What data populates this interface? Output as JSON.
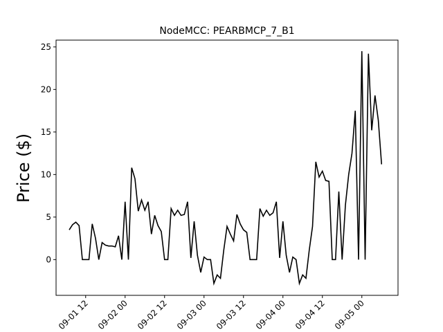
{
  "chart_data": {
    "type": "line",
    "title": "NodeMCC: PEARBMCP_7_B1",
    "y_label": "Price ($)",
    "x": [
      "09-01 07",
      "09-01 08",
      "09-01 09",
      "09-01 10",
      "09-01 11",
      "09-01 12",
      "09-01 13",
      "09-01 14",
      "09-01 15",
      "09-01 16",
      "09-01 17",
      "09-01 18",
      "09-01 19",
      "09-01 20",
      "09-01 21",
      "09-01 22",
      "09-01 23",
      "09-02 00",
      "09-02 01",
      "09-02 02",
      "09-02 03",
      "09-02 04",
      "09-02 05",
      "09-02 06",
      "09-02 07",
      "09-02 08",
      "09-02 09",
      "09-02 10",
      "09-02 11",
      "09-02 12",
      "09-02 13",
      "09-02 14",
      "09-02 15",
      "09-02 16",
      "09-02 17",
      "09-02 18",
      "09-02 19",
      "09-02 20",
      "09-02 21",
      "09-02 22",
      "09-02 23",
      "09-03 00",
      "09-03 01",
      "09-03 02",
      "09-03 03",
      "09-03 04",
      "09-03 05",
      "09-03 06",
      "09-03 07",
      "09-03 08",
      "09-03 09",
      "09-03 10",
      "09-03 11",
      "09-03 12",
      "09-03 13",
      "09-03 14",
      "09-03 15",
      "09-03 16",
      "09-03 17",
      "09-03 18",
      "09-03 19",
      "09-03 20",
      "09-03 21",
      "09-03 22",
      "09-03 23",
      "09-04 00",
      "09-04 01",
      "09-04 02",
      "09-04 03",
      "09-04 04",
      "09-04 05",
      "09-04 06",
      "09-04 07",
      "09-04 08",
      "09-04 09",
      "09-04 10",
      "09-04 11",
      "09-04 12",
      "09-04 13",
      "09-04 14",
      "09-04 15",
      "09-04 16",
      "09-04 17",
      "09-04 18",
      "09-04 19",
      "09-04 20",
      "09-04 21",
      "09-04 22",
      "09-04 23",
      "09-05 00",
      "09-05 01",
      "09-05 02",
      "09-05 03",
      "09-05 04",
      "09-05 05",
      "09-05 06"
    ],
    "series": [
      {
        "color": "#000000",
        "values": [
          3.5,
          4.1,
          4.4,
          4.0,
          0,
          0,
          0,
          4.2,
          2.5,
          0,
          2.0,
          1.7,
          1.6,
          1.6,
          1.5,
          2.8,
          0,
          6.8,
          0,
          10.8,
          9.5,
          5.7,
          7.0,
          5.8,
          6.8,
          3.0,
          5.2,
          4.0,
          3.3,
          0,
          0,
          6.0,
          5.2,
          5.8,
          5.2,
          5.3,
          6.8,
          0.2,
          4.5,
          0.5,
          -1.5,
          0.3,
          0,
          0,
          -2.8,
          -1.8,
          -2.2,
          1.1,
          3.9,
          3.0,
          2.2,
          5.3,
          4.2,
          3.5,
          3.2,
          0,
          0,
          0,
          6.0,
          5.1,
          5.8,
          5.2,
          5.5,
          6.8,
          0.2,
          4.5,
          0.5,
          -1.5,
          0.3,
          0,
          -2.8,
          -1.8,
          -2.2,
          1.1,
          3.9,
          11.5,
          9.7,
          10.4,
          9.3,
          9.2,
          0,
          0,
          8.0,
          0,
          6.4,
          10.0,
          12.5,
          17.5,
          0,
          24.5,
          0,
          24.2,
          15.2,
          19.3,
          16.4,
          11.2
        ]
      }
    ],
    "xlim": [
      "09-01 03",
      "09-05 11"
    ],
    "xticks": [
      "09-01 12",
      "09-02 00",
      "09-02 12",
      "09-03 00",
      "09-03 12",
      "09-04 00",
      "09-04 12",
      "09-05 00"
    ],
    "ylim": [
      -4.2,
      25.8
    ],
    "yticks": [
      0,
      5,
      10,
      15,
      20,
      25
    ]
  }
}
